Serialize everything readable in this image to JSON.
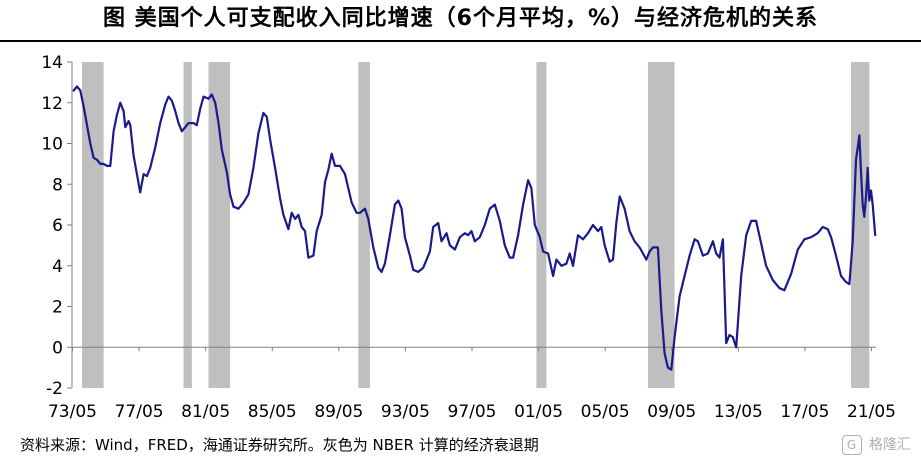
{
  "title": "图  美国个人可支配收入同比增速（6个月平均，%）与经济危机的关系",
  "source": "资料来源：Wind，FRED，海通证券研究所。灰色为 NBER 计算的经济衰退期",
  "watermark": {
    "badge": "G",
    "text": "格隆汇"
  },
  "colors": {
    "line": "#1a1a8c",
    "recession": "#bfbfbf",
    "axis": "#808080"
  },
  "chart_data": {
    "type": "line",
    "title": "美国个人可支配收入同比增速（6个月平均，%）与经济危机的关系",
    "xlabel": "",
    "ylabel": "",
    "ylim": [
      -2,
      14
    ],
    "yticks": [
      -2,
      0,
      2,
      4,
      6,
      8,
      10,
      12,
      14
    ],
    "xlim": [
      1973.3,
      2021.6
    ],
    "xticks": [
      {
        "x": 1973.33,
        "label": "73/05"
      },
      {
        "x": 1977.33,
        "label": "77/05"
      },
      {
        "x": 1981.33,
        "label": "81/05"
      },
      {
        "x": 1985.33,
        "label": "85/05"
      },
      {
        "x": 1989.33,
        "label": "89/05"
      },
      {
        "x": 1993.33,
        "label": "93/05"
      },
      {
        "x": 1997.33,
        "label": "97/05"
      },
      {
        "x": 2001.33,
        "label": "01/05"
      },
      {
        "x": 2005.33,
        "label": "05/05"
      },
      {
        "x": 2009.33,
        "label": "09/05"
      },
      {
        "x": 2013.33,
        "label": "13/05"
      },
      {
        "x": 2017.33,
        "label": "17/05"
      },
      {
        "x": 2021.33,
        "label": "21/05"
      }
    ],
    "recessions": [
      [
        1973.9,
        1975.2
      ],
      [
        1980.0,
        1980.5
      ],
      [
        1981.5,
        1982.8
      ],
      [
        1990.5,
        1991.2
      ],
      [
        2001.2,
        2001.8
      ],
      [
        2007.9,
        2009.5
      ],
      [
        2020.1,
        2021.2
      ]
    ],
    "series": [
      {
        "points": [
          [
            1973.4,
            12.6
          ],
          [
            1973.6,
            12.8
          ],
          [
            1973.8,
            12.6
          ],
          [
            1974.0,
            11.8
          ],
          [
            1974.2,
            10.9
          ],
          [
            1974.4,
            10.0
          ],
          [
            1974.6,
            9.3
          ],
          [
            1974.8,
            9.2
          ],
          [
            1975.0,
            9.0
          ],
          [
            1975.2,
            9.0
          ],
          [
            1975.4,
            8.9
          ],
          [
            1975.6,
            8.9
          ],
          [
            1975.8,
            10.6
          ],
          [
            1976.0,
            11.4
          ],
          [
            1976.2,
            12.0
          ],
          [
            1976.4,
            11.6
          ],
          [
            1976.5,
            10.8
          ],
          [
            1976.7,
            11.1
          ],
          [
            1976.8,
            10.9
          ],
          [
            1977.0,
            9.4
          ],
          [
            1977.2,
            8.5
          ],
          [
            1977.4,
            7.6
          ],
          [
            1977.6,
            8.5
          ],
          [
            1977.8,
            8.4
          ],
          [
            1978.0,
            8.8
          ],
          [
            1978.3,
            9.8
          ],
          [
            1978.6,
            11.0
          ],
          [
            1978.9,
            11.9
          ],
          [
            1979.1,
            12.3
          ],
          [
            1979.3,
            12.1
          ],
          [
            1979.5,
            11.6
          ],
          [
            1979.7,
            11.0
          ],
          [
            1979.9,
            10.6
          ],
          [
            1980.1,
            10.8
          ],
          [
            1980.3,
            11.0
          ],
          [
            1980.6,
            11.0
          ],
          [
            1980.8,
            10.9
          ],
          [
            1981.0,
            11.7
          ],
          [
            1981.2,
            12.3
          ],
          [
            1981.5,
            12.2
          ],
          [
            1981.7,
            12.4
          ],
          [
            1981.9,
            12.0
          ],
          [
            1982.1,
            11.0
          ],
          [
            1982.3,
            9.7
          ],
          [
            1982.6,
            8.6
          ],
          [
            1982.8,
            7.5
          ],
          [
            1983.0,
            6.9
          ],
          [
            1983.3,
            6.8
          ],
          [
            1983.6,
            7.1
          ],
          [
            1983.9,
            7.5
          ],
          [
            1984.2,
            8.8
          ],
          [
            1984.5,
            10.5
          ],
          [
            1984.8,
            11.5
          ],
          [
            1985.0,
            11.3
          ],
          [
            1985.2,
            10.2
          ],
          [
            1985.5,
            8.8
          ],
          [
            1985.8,
            7.3
          ],
          [
            1986.0,
            6.5
          ],
          [
            1986.3,
            5.8
          ],
          [
            1986.5,
            6.6
          ],
          [
            1986.7,
            6.3
          ],
          [
            1986.9,
            6.5
          ],
          [
            1987.1,
            5.9
          ],
          [
            1987.3,
            5.7
          ],
          [
            1987.5,
            4.4
          ],
          [
            1987.8,
            4.5
          ],
          [
            1988.0,
            5.7
          ],
          [
            1988.3,
            6.5
          ],
          [
            1988.5,
            8.1
          ],
          [
            1988.7,
            8.7
          ],
          [
            1988.9,
            9.5
          ],
          [
            1989.1,
            8.9
          ],
          [
            1989.4,
            8.9
          ],
          [
            1989.7,
            8.5
          ],
          [
            1989.9,
            7.8
          ],
          [
            1990.1,
            7.1
          ],
          [
            1990.4,
            6.6
          ],
          [
            1990.6,
            6.6
          ],
          [
            1990.9,
            6.8
          ],
          [
            1991.1,
            6.3
          ],
          [
            1991.4,
            4.9
          ],
          [
            1991.7,
            3.9
          ],
          [
            1991.9,
            3.7
          ],
          [
            1992.1,
            4.1
          ],
          [
            1992.4,
            5.5
          ],
          [
            1992.7,
            7.0
          ],
          [
            1992.9,
            7.2
          ],
          [
            1993.1,
            6.8
          ],
          [
            1993.3,
            5.4
          ],
          [
            1993.6,
            4.5
          ],
          [
            1993.8,
            3.8
          ],
          [
            1994.1,
            3.7
          ],
          [
            1994.4,
            3.9
          ],
          [
            1994.8,
            4.7
          ],
          [
            1995.0,
            5.9
          ],
          [
            1995.3,
            6.1
          ],
          [
            1995.5,
            5.2
          ],
          [
            1995.8,
            5.6
          ],
          [
            1996.0,
            5.0
          ],
          [
            1996.3,
            4.8
          ],
          [
            1996.6,
            5.4
          ],
          [
            1996.9,
            5.6
          ],
          [
            1997.1,
            5.5
          ],
          [
            1997.3,
            5.7
          ],
          [
            1997.5,
            5.2
          ],
          [
            1997.8,
            5.4
          ],
          [
            1998.1,
            6.0
          ],
          [
            1998.4,
            6.8
          ],
          [
            1998.7,
            7.0
          ],
          [
            1999.0,
            6.2
          ],
          [
            1999.3,
            5.0
          ],
          [
            1999.6,
            4.4
          ],
          [
            1999.8,
            4.4
          ],
          [
            2000.1,
            5.5
          ],
          [
            2000.4,
            7.0
          ],
          [
            2000.7,
            8.2
          ],
          [
            2000.9,
            7.8
          ],
          [
            2001.1,
            6.0
          ],
          [
            2001.4,
            5.4
          ],
          [
            2001.6,
            4.7
          ],
          [
            2001.9,
            4.6
          ],
          [
            2002.2,
            3.5
          ],
          [
            2002.4,
            4.3
          ],
          [
            2002.7,
            4.0
          ],
          [
            2003.0,
            4.1
          ],
          [
            2003.2,
            4.6
          ],
          [
            2003.4,
            4.0
          ],
          [
            2003.7,
            5.5
          ],
          [
            2004.0,
            5.3
          ],
          [
            2004.3,
            5.6
          ],
          [
            2004.6,
            6.0
          ],
          [
            2004.9,
            5.7
          ],
          [
            2005.1,
            5.9
          ],
          [
            2005.3,
            5.0
          ],
          [
            2005.6,
            4.2
          ],
          [
            2005.8,
            4.3
          ],
          [
            2006.0,
            6.1
          ],
          [
            2006.2,
            7.4
          ],
          [
            2006.5,
            6.8
          ],
          [
            2006.8,
            5.7
          ],
          [
            2007.1,
            5.2
          ],
          [
            2007.4,
            4.9
          ],
          [
            2007.6,
            4.6
          ],
          [
            2007.8,
            4.3
          ],
          [
            2008.0,
            4.7
          ],
          [
            2008.2,
            4.9
          ],
          [
            2008.5,
            4.9
          ],
          [
            2008.7,
            1.8
          ],
          [
            2008.9,
            -0.3
          ],
          [
            2009.1,
            -1.0
          ],
          [
            2009.3,
            -1.1
          ],
          [
            2009.5,
            0.5
          ],
          [
            2009.8,
            2.5
          ],
          [
            2010.1,
            3.5
          ],
          [
            2010.4,
            4.5
          ],
          [
            2010.7,
            5.3
          ],
          [
            2010.9,
            5.2
          ],
          [
            2011.2,
            4.5
          ],
          [
            2011.5,
            4.6
          ],
          [
            2011.8,
            5.2
          ],
          [
            2012.0,
            4.6
          ],
          [
            2012.2,
            4.4
          ],
          [
            2012.4,
            5.3
          ],
          [
            2012.6,
            0.2
          ],
          [
            2012.8,
            0.6
          ],
          [
            2013.0,
            0.5
          ],
          [
            2013.2,
            0.0
          ],
          [
            2013.5,
            3.5
          ],
          [
            2013.8,
            5.5
          ],
          [
            2014.1,
            6.2
          ],
          [
            2014.4,
            6.2
          ],
          [
            2014.7,
            5.1
          ],
          [
            2015.0,
            4.0
          ],
          [
            2015.4,
            3.3
          ],
          [
            2015.8,
            2.9
          ],
          [
            2016.1,
            2.8
          ],
          [
            2016.5,
            3.6
          ],
          [
            2016.9,
            4.8
          ],
          [
            2017.3,
            5.3
          ],
          [
            2017.7,
            5.4
          ],
          [
            2018.1,
            5.6
          ],
          [
            2018.4,
            5.9
          ],
          [
            2018.7,
            5.8
          ],
          [
            2018.9,
            5.4
          ],
          [
            2019.2,
            4.5
          ],
          [
            2019.5,
            3.5
          ],
          [
            2019.8,
            3.2
          ],
          [
            2020.0,
            3.1
          ],
          [
            2020.2,
            5.2
          ],
          [
            2020.4,
            9.2
          ],
          [
            2020.6,
            10.4
          ],
          [
            2020.7,
            8.6
          ],
          [
            2020.8,
            7.0
          ],
          [
            2020.9,
            6.4
          ],
          [
            2021.0,
            7.4
          ],
          [
            2021.1,
            8.8
          ],
          [
            2021.2,
            7.2
          ],
          [
            2021.3,
            7.7
          ],
          [
            2021.4,
            7.0
          ],
          [
            2021.55,
            5.5
          ]
        ]
      }
    ]
  }
}
